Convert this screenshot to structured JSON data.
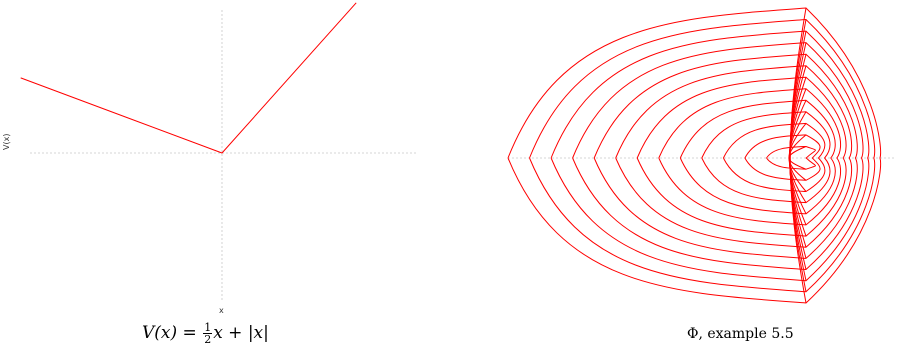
{
  "figures": [
    {
      "chart_data": {
        "type": "line",
        "title": "",
        "xlabel": "x",
        "ylabel": "V(x)",
        "xlim": [
          -4,
          2.6
        ],
        "ylim": [
          -3.2,
          3.1
        ],
        "grid": false,
        "reference_lines": [
          "x=0",
          "y=0"
        ],
        "series": [
          {
            "x": [
              -3.3,
              0,
              2.2
            ],
            "y": [
              1.65,
              0,
              3.3
            ],
            "color": "#ff0000"
          }
        ]
      },
      "caption": {
        "lhs": "V(x) = ",
        "frac_num": "1",
        "frac_den": "2",
        "rhs": "x + |x|"
      }
    },
    {
      "chart_data": {
        "type": "line",
        "title": "",
        "xlabel": "",
        "ylabel": "",
        "grid": false,
        "reference_lines": [
          "y=0"
        ],
        "description_series": "family of 13 nested level-set curves, each a parabolic arc on the left joined to a cusp arc at the right edge",
        "levels": [
          1,
          2,
          3,
          4,
          5,
          6,
          7,
          8,
          9,
          10,
          11,
          12,
          13
        ],
        "color": "#ff0000"
      },
      "caption": "Φ, example 5.5"
    }
  ]
}
